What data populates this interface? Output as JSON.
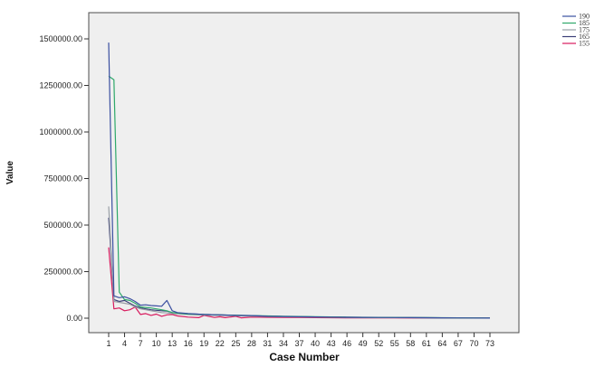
{
  "chart_data": {
    "type": "line",
    "title": "",
    "xlabel": "Case Number",
    "ylabel": "Value",
    "ylim": [
      0,
      1500000
    ],
    "xlim": [
      1,
      73
    ],
    "grid": false,
    "legend_position": "top-right",
    "y_ticks": [
      "0.00",
      "250000.00",
      "500000.00",
      "750000.00",
      "1000000.00",
      "1250000.00",
      "1500000.00"
    ],
    "y_tick_values": [
      0,
      250000,
      500000,
      750000,
      1000000,
      1250000,
      1500000
    ],
    "x_ticks": [
      "1",
      "4",
      "7",
      "10",
      "13",
      "16",
      "19",
      "22",
      "25",
      "28",
      "31",
      "34",
      "37",
      "40",
      "43",
      "46",
      "49",
      "52",
      "55",
      "58",
      "61",
      "64",
      "67",
      "70",
      "73"
    ],
    "x_tick_values": [
      1,
      4,
      7,
      10,
      13,
      16,
      19,
      22,
      25,
      28,
      31,
      34,
      37,
      40,
      43,
      46,
      49,
      52,
      55,
      58,
      61,
      64,
      67,
      70,
      73
    ],
    "series": [
      {
        "name": "190",
        "color": "#3a4fa0",
        "points": [
          [
            1,
            1480000
          ],
          [
            2,
            120000
          ],
          [
            3,
            110000
          ],
          [
            4,
            115000
          ],
          [
            5,
            105000
          ],
          [
            6,
            90000
          ],
          [
            7,
            70000
          ],
          [
            8,
            72000
          ],
          [
            9,
            68000
          ],
          [
            10,
            66000
          ],
          [
            11,
            64000
          ],
          [
            12,
            95000
          ],
          [
            13,
            40000
          ],
          [
            14,
            30000
          ],
          [
            16,
            25000
          ],
          [
            19,
            20000
          ],
          [
            22,
            18000
          ],
          [
            25,
            15000
          ],
          [
            28,
            14000
          ],
          [
            31,
            10000
          ],
          [
            34,
            9000
          ],
          [
            37,
            8000
          ],
          [
            40,
            7000
          ],
          [
            43,
            6000
          ],
          [
            46,
            5000
          ],
          [
            49,
            4500
          ],
          [
            52,
            4000
          ],
          [
            55,
            3500
          ],
          [
            58,
            3000
          ],
          [
            61,
            2500
          ],
          [
            64,
            2000
          ],
          [
            67,
            1500
          ],
          [
            70,
            1000
          ],
          [
            73,
            500
          ]
        ]
      },
      {
        "name": "185",
        "color": "#2ea86a",
        "points": [
          [
            1,
            1300000
          ],
          [
            2,
            1280000
          ],
          [
            3,
            140000
          ],
          [
            4,
            100000
          ],
          [
            5,
            95000
          ],
          [
            6,
            80000
          ],
          [
            7,
            60000
          ],
          [
            8,
            58000
          ],
          [
            9,
            55000
          ],
          [
            10,
            50000
          ],
          [
            11,
            45000
          ],
          [
            12,
            40000
          ],
          [
            13,
            30000
          ],
          [
            16,
            22000
          ],
          [
            19,
            20000
          ],
          [
            22,
            18000
          ],
          [
            25,
            16000
          ],
          [
            28,
            14000
          ],
          [
            31,
            12000
          ],
          [
            34,
            10000
          ],
          [
            37,
            9000
          ],
          [
            40,
            8000
          ],
          [
            43,
            7000
          ],
          [
            46,
            6000
          ],
          [
            49,
            5000
          ],
          [
            52,
            4500
          ],
          [
            55,
            4000
          ],
          [
            58,
            3500
          ],
          [
            61,
            3000
          ],
          [
            64,
            2500
          ],
          [
            67,
            2000
          ],
          [
            70,
            1500
          ],
          [
            73,
            1000
          ]
        ]
      },
      {
        "name": "175",
        "color": "#9aa0a6",
        "points": [
          [
            1,
            600000
          ],
          [
            2,
            90000
          ],
          [
            3,
            85000
          ],
          [
            4,
            80000
          ],
          [
            5,
            75000
          ],
          [
            6,
            60000
          ],
          [
            7,
            50000
          ],
          [
            8,
            45000
          ],
          [
            9,
            40000
          ],
          [
            10,
            35000
          ],
          [
            11,
            30000
          ],
          [
            12,
            28000
          ],
          [
            13,
            25000
          ],
          [
            16,
            20000
          ],
          [
            19,
            17000
          ],
          [
            22,
            15000
          ],
          [
            25,
            13000
          ],
          [
            28,
            11000
          ],
          [
            31,
            9000
          ],
          [
            34,
            8000
          ],
          [
            37,
            7000
          ],
          [
            40,
            6000
          ],
          [
            43,
            5000
          ],
          [
            46,
            4500
          ],
          [
            49,
            4000
          ],
          [
            52,
            3500
          ],
          [
            55,
            3000
          ],
          [
            58,
            2500
          ],
          [
            61,
            2000
          ],
          [
            64,
            1800
          ],
          [
            67,
            1500
          ],
          [
            70,
            1200
          ],
          [
            73,
            900
          ]
        ]
      },
      {
        "name": "165",
        "color": "#3b3f78",
        "points": [
          [
            1,
            540000
          ],
          [
            2,
            100000
          ],
          [
            3,
            90000
          ],
          [
            4,
            95000
          ],
          [
            5,
            80000
          ],
          [
            6,
            65000
          ],
          [
            7,
            55000
          ],
          [
            8,
            50000
          ],
          [
            9,
            45000
          ],
          [
            10,
            42000
          ],
          [
            11,
            40000
          ],
          [
            12,
            38000
          ],
          [
            13,
            30000
          ],
          [
            16,
            24000
          ],
          [
            19,
            20000
          ],
          [
            22,
            18000
          ],
          [
            25,
            15000
          ],
          [
            28,
            13000
          ],
          [
            31,
            11000
          ],
          [
            34,
            9000
          ],
          [
            37,
            8000
          ],
          [
            40,
            7000
          ],
          [
            43,
            6000
          ],
          [
            46,
            5000
          ],
          [
            49,
            4500
          ],
          [
            52,
            4000
          ],
          [
            55,
            3500
          ],
          [
            58,
            3000
          ],
          [
            61,
            2500
          ],
          [
            64,
            2000
          ],
          [
            67,
            1700
          ],
          [
            70,
            1400
          ],
          [
            73,
            1100
          ]
        ]
      },
      {
        "name": "155",
        "color": "#d81b5e",
        "points": [
          [
            1,
            380000
          ],
          [
            2,
            50000
          ],
          [
            3,
            55000
          ],
          [
            4,
            40000
          ],
          [
            5,
            45000
          ],
          [
            6,
            60000
          ],
          [
            7,
            20000
          ],
          [
            8,
            25000
          ],
          [
            9,
            15000
          ],
          [
            10,
            22000
          ],
          [
            11,
            10000
          ],
          [
            12,
            18000
          ],
          [
            13,
            20000
          ],
          [
            14,
            12000
          ],
          [
            16,
            6000
          ],
          [
            18,
            3000
          ],
          [
            19,
            15000
          ],
          [
            21,
            4000
          ],
          [
            22,
            8000
          ],
          [
            23,
            3000
          ],
          [
            25,
            10000
          ],
          [
            26,
            2000
          ],
          [
            28,
            6000
          ],
          [
            31,
            5000
          ],
          [
            34,
            4000
          ],
          [
            37,
            3500
          ],
          [
            40,
            3000
          ],
          [
            43,
            2500
          ],
          [
            46,
            2000
          ],
          [
            49,
            1800
          ],
          [
            52,
            1500
          ],
          [
            55,
            1300
          ],
          [
            58,
            1100
          ],
          [
            61,
            900
          ],
          [
            64,
            800
          ],
          [
            67,
            700
          ],
          [
            70,
            600
          ],
          [
            73,
            500
          ]
        ]
      }
    ]
  }
}
